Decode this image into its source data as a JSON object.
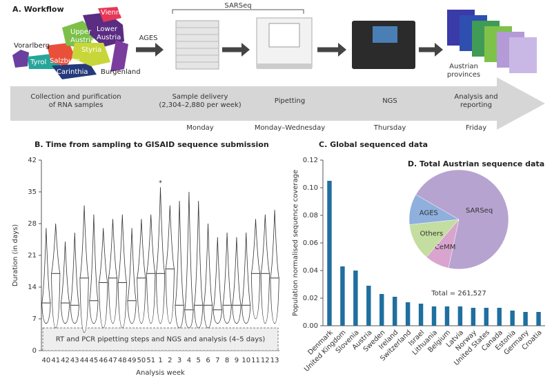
{
  "workflow": {
    "title": "A. Workflow",
    "provinces": [
      {
        "lines": [
          "Vorarlberg"
        ]
      },
      {
        "lines": [
          "Tyrol"
        ]
      },
      {
        "lines": [
          "Salzburg"
        ]
      },
      {
        "lines": [
          "Carinthia"
        ]
      },
      {
        "lines": [
          "Upper",
          "Austria"
        ]
      },
      {
        "lines": [
          "Vienna"
        ]
      },
      {
        "lines": [
          "Lower",
          "Austria"
        ]
      },
      {
        "lines": [
          "Styria"
        ]
      },
      {
        "lines": [
          "Burgenland"
        ]
      }
    ],
    "ages": "AGES",
    "sarseq": "SARSeq",
    "austrian": [
      "Austrian",
      "provinces"
    ],
    "steps": [
      {
        "lines": [
          "Collection and purification",
          "of RNA samples"
        ]
      },
      {
        "lines": [
          "Sample delivery",
          "(2,304–2,880 per week)"
        ],
        "day": "Monday"
      },
      {
        "lines": [
          "Pipetting"
        ],
        "day": "Monday–Wednesday"
      },
      {
        "lines": [
          "NGS"
        ],
        "day": "Thursday"
      },
      {
        "lines": [
          "Analysis and",
          "reporting"
        ],
        "day": "Friday"
      }
    ]
  },
  "chart_data": [
    {
      "type": "violin",
      "title": "B. Time from sampling to GISAID sequence submission",
      "x_label": "Analysis week",
      "y_label": "Duration (in days)",
      "categories": [
        "40",
        "41",
        "42",
        "43",
        "44",
        "45",
        "46",
        "47",
        "48",
        "49",
        "50",
        "51",
        "1",
        "2",
        "3",
        "4",
        "5",
        "6",
        "7",
        "8",
        "9",
        "10",
        "11",
        "12",
        "13"
      ],
      "medians": [
        10.5,
        17,
        10.5,
        10,
        16,
        11,
        15,
        16,
        15,
        11,
        16,
        17,
        17,
        18,
        10,
        9,
        10,
        10,
        9,
        10,
        10,
        10,
        17,
        17,
        16
      ],
      "mins": [
        6,
        5,
        6,
        6,
        4,
        6,
        5,
        6,
        5,
        6,
        6,
        6,
        6,
        6,
        5,
        5,
        5,
        5,
        6,
        6,
        6,
        6,
        7,
        6,
        6
      ],
      "maxs": [
        27,
        28,
        24,
        26,
        32,
        30,
        27,
        29,
        30,
        27,
        29,
        30,
        36,
        32,
        33,
        35,
        33,
        28,
        25,
        26,
        25,
        26,
        29,
        30,
        31
      ],
      "color": "#ffffff",
      "ylim": [
        0,
        42
      ],
      "yticks": [
        0,
        7,
        14,
        21,
        28,
        35,
        42
      ],
      "band": {
        "range": [
          0,
          5
        ],
        "label": "RT and PCR pipetting steps and NGS and analysis (4–5 days)"
      },
      "annotation": {
        "text": "*",
        "category": 12,
        "y": 37
      }
    },
    {
      "type": "bar",
      "title": "C. Global sequenced data",
      "y_label": "Population normalised sequence coverage",
      "categories": [
        "Denmark",
        "United Kingdom",
        "Slovenia",
        "Austria",
        "Sweden",
        "Ireland",
        "Switzerland",
        "Israel",
        "Lithuania",
        "Belgium",
        "Latvia",
        "Norway",
        "United States",
        "Canada",
        "Estonia",
        "Germany",
        "Croatia"
      ],
      "values": [
        0.105,
        0.043,
        0.04,
        0.029,
        0.023,
        0.021,
        0.017,
        0.016,
        0.014,
        0.014,
        0.014,
        0.013,
        0.013,
        0.013,
        0.011,
        0.01,
        0.01
      ],
      "color": "#1f6f9f",
      "ylim": [
        0,
        0.12
      ],
      "yticks": [
        {
          "value": 0,
          "label": "0.00"
        },
        0.02,
        0.04,
        0.06,
        0.08,
        {
          "value": 0.1,
          "label": "0.10"
        },
        0.12
      ]
    },
    {
      "type": "pie",
      "title": "D. Total Austrian sequence data",
      "total_label": "Total = 261,527",
      "categories": [
        "SARSeq",
        "CeMM",
        "Others",
        "AGES"
      ],
      "values": [
        70,
        8,
        12,
        10
      ],
      "colors": [
        "#b7a3cf",
        "#d9a5cf",
        "#c4dda0",
        "#8fb0dd"
      ]
    }
  ]
}
